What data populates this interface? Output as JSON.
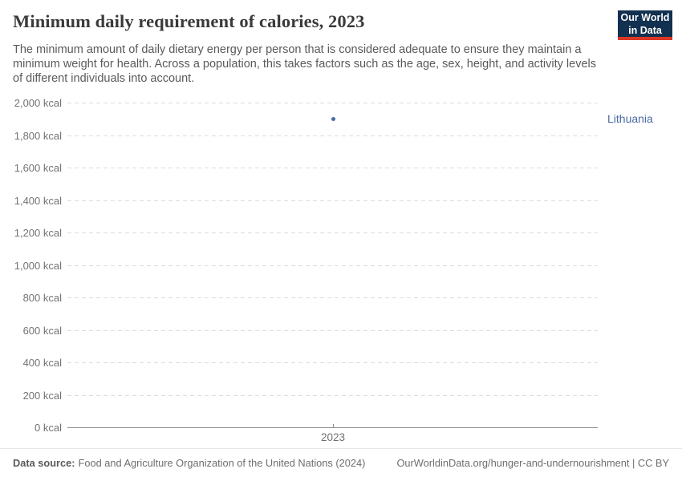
{
  "header": {
    "title": "Minimum daily requirement of calories, 2023",
    "subtitle": "The minimum amount of daily dietary energy per person that is considered adequate to ensure they maintain a minimum weight for health. Across a population, this takes factors such as the age, sex, height, and activity levels of different individuals into account.",
    "logo": {
      "line1": "Our World",
      "line2": "in Data",
      "bg_color": "#12304f",
      "accent_color": "#dc3726"
    }
  },
  "chart_data": {
    "type": "scatter",
    "title": "Minimum daily requirement of calories, 2023",
    "x": [
      2023
    ],
    "series": [
      {
        "name": "Lithuania",
        "values": [
          1900
        ],
        "color": "#4a69a4"
      }
    ],
    "xlabel": "",
    "ylabel": "",
    "ylim": [
      0,
      2000
    ],
    "ytick_step": 200,
    "ytick_values": [
      0,
      200,
      400,
      600,
      800,
      1000,
      1200,
      1400,
      1600,
      1800,
      2000
    ],
    "ytick_labels": [
      "0 kcal",
      "200 kcal",
      "400 kcal",
      "600 kcal",
      "800 kcal",
      "1,000 kcal",
      "1,200 kcal",
      "1,400 kcal",
      "1,600 kcal",
      "1,800 kcal",
      "2,000 kcal"
    ],
    "xtick_labels": [
      "2023"
    ],
    "grid": "horizontal-dashed",
    "legend_position": "right-entity-label"
  },
  "footer": {
    "datasource_label": "Data source:",
    "datasource": "Food and Agriculture Organization of the United Nations (2024)",
    "credit": "OurWorldinData.org/hunger-and-undernourishment | CC BY"
  }
}
